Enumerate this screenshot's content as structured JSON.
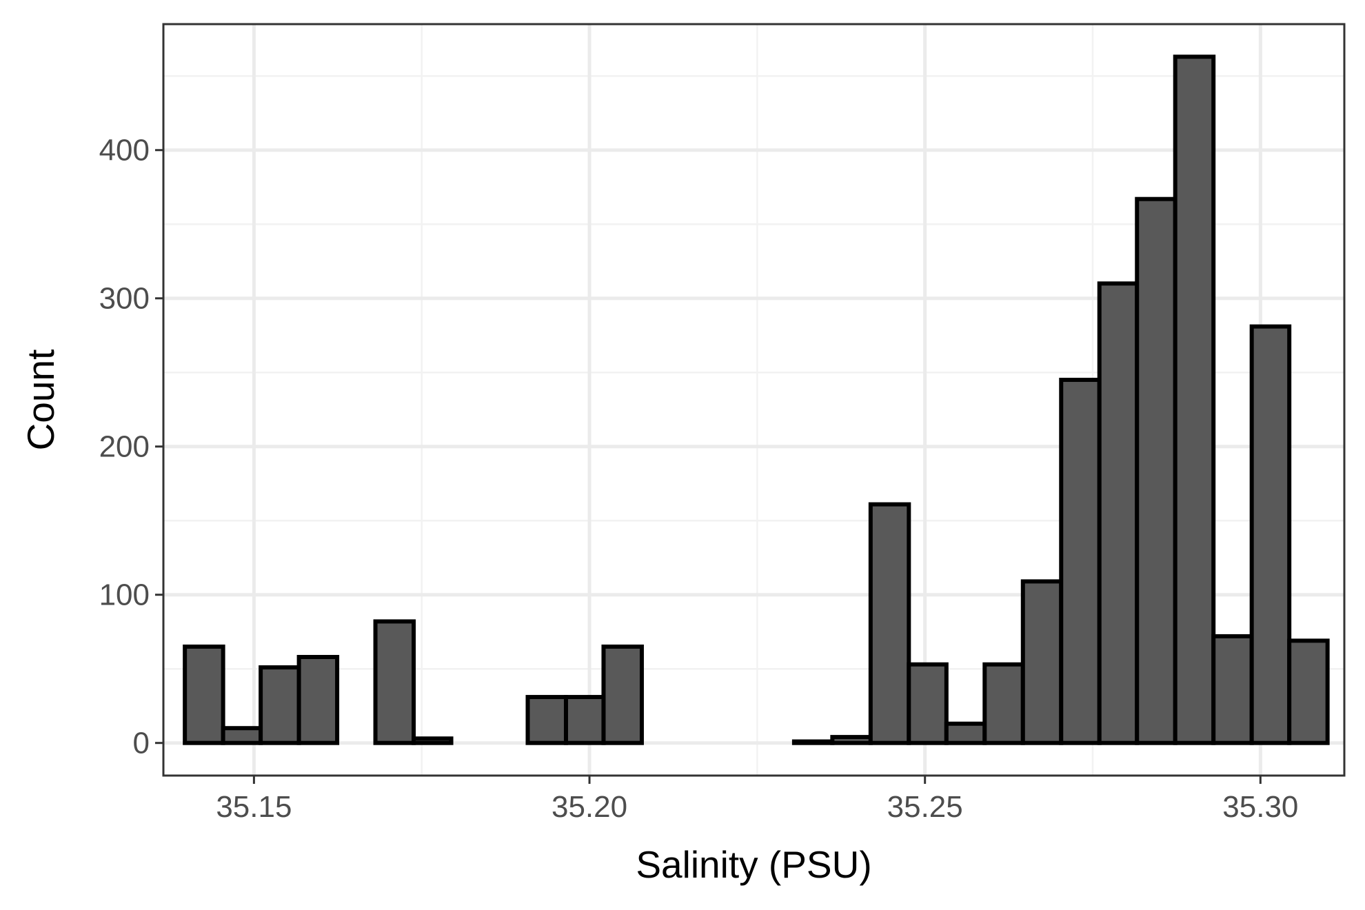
{
  "chart_data": {
    "type": "bar",
    "subtype": "histogram",
    "title": "",
    "xlabel": "Salinity (PSU)",
    "ylabel": "Count",
    "xlim": [
      35.1365,
      35.3125
    ],
    "ylim": [
      -22,
      485
    ],
    "x_ticks": [
      35.15,
      35.2,
      35.25,
      35.3
    ],
    "x_tick_labels": [
      "35.15",
      "35.20",
      "35.25",
      "35.30"
    ],
    "y_ticks": [
      0,
      100,
      200,
      300,
      400
    ],
    "y_tick_labels": [
      "0",
      "100",
      "200",
      "300",
      "400"
    ],
    "grid": true,
    "legend": "none",
    "colors": {
      "bar_fill": "#595959",
      "bar_outline": "#000000",
      "grid_major": "#ebebeb",
      "grid_minor": "#f2f2f2",
      "panel_border": "#333333"
    },
    "bins": [
      {
        "x0": 35.1397,
        "x1": 35.1454,
        "count": 65
      },
      {
        "x0": 35.1454,
        "x1": 35.151,
        "count": 10
      },
      {
        "x0": 35.151,
        "x1": 35.1567,
        "count": 51
      },
      {
        "x0": 35.1567,
        "x1": 35.1624,
        "count": 58
      },
      {
        "x0": 35.1624,
        "x1": 35.1681,
        "count": 0
      },
      {
        "x0": 35.1681,
        "x1": 35.1738,
        "count": 82
      },
      {
        "x0": 35.1738,
        "x1": 35.1794,
        "count": 3
      },
      {
        "x0": 35.1794,
        "x1": 35.1851,
        "count": 0
      },
      {
        "x0": 35.1851,
        "x1": 35.1908,
        "count": 0
      },
      {
        "x0": 35.1908,
        "x1": 35.1965,
        "count": 31
      },
      {
        "x0": 35.1965,
        "x1": 35.2021,
        "count": 31
      },
      {
        "x0": 35.2021,
        "x1": 35.2078,
        "count": 65
      },
      {
        "x0": 35.2078,
        "x1": 35.2135,
        "count": 0
      },
      {
        "x0": 35.2135,
        "x1": 35.2192,
        "count": 0
      },
      {
        "x0": 35.2192,
        "x1": 35.2249,
        "count": 0
      },
      {
        "x0": 35.2249,
        "x1": 35.2305,
        "count": 0
      },
      {
        "x0": 35.2305,
        "x1": 35.2362,
        "count": 1
      },
      {
        "x0": 35.2362,
        "x1": 35.2419,
        "count": 4
      },
      {
        "x0": 35.2419,
        "x1": 35.2476,
        "count": 161
      },
      {
        "x0": 35.2476,
        "x1": 35.2532,
        "count": 53
      },
      {
        "x0": 35.2532,
        "x1": 35.2589,
        "count": 13
      },
      {
        "x0": 35.2589,
        "x1": 35.2646,
        "count": 53
      },
      {
        "x0": 35.2646,
        "x1": 35.2703,
        "count": 109
      },
      {
        "x0": 35.2703,
        "x1": 35.276,
        "count": 245
      },
      {
        "x0": 35.276,
        "x1": 35.2816,
        "count": 310
      },
      {
        "x0": 35.2816,
        "x1": 35.2873,
        "count": 367
      },
      {
        "x0": 35.2873,
        "x1": 35.293,
        "count": 463
      },
      {
        "x0": 35.293,
        "x1": 35.2987,
        "count": 72
      },
      {
        "x0": 35.2987,
        "x1": 35.3043,
        "count": 281
      },
      {
        "x0": 35.3043,
        "x1": 35.31,
        "count": 69
      }
    ]
  }
}
